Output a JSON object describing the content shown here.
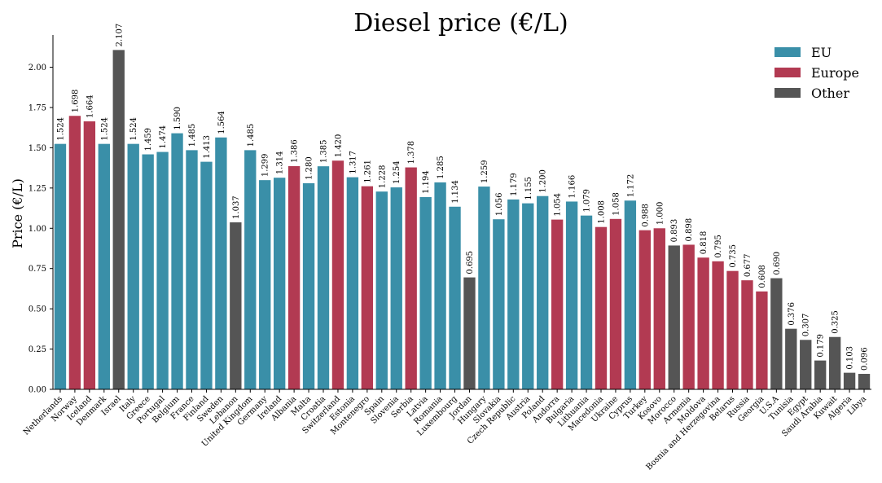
{
  "chart_data": {
    "type": "bar",
    "title": "Diesel price (€/L)",
    "xlabel": "",
    "ylabel": "Price (€/L)",
    "ylim": [
      0,
      2.2
    ],
    "yticks": [
      "0.00",
      "0.25",
      "0.50",
      "0.75",
      "1.00",
      "1.25",
      "1.50",
      "1.75",
      "2.00"
    ],
    "grid": false,
    "legend_position": "top-right",
    "groups": [
      {
        "name": "EU",
        "color": "#3a8fa8"
      },
      {
        "name": "Europe",
        "color": "#b23a52"
      },
      {
        "name": "Other",
        "color": "#555555"
      }
    ],
    "bars": [
      {
        "country": "Netherlands",
        "value": 1.524,
        "label": "1.524",
        "group": "EU"
      },
      {
        "country": "Norway",
        "value": 1.698,
        "label": "1.698",
        "group": "Europe"
      },
      {
        "country": "Iceland",
        "value": 1.664,
        "label": "1.664",
        "group": "Europe"
      },
      {
        "country": "Denmark",
        "value": 1.524,
        "label": "1.524",
        "group": "EU"
      },
      {
        "country": "Israel",
        "value": 2.107,
        "label": "2.107",
        "group": "Other"
      },
      {
        "country": "Italy",
        "value": 1.524,
        "label": "1.524",
        "group": "EU"
      },
      {
        "country": "Greece",
        "value": 1.459,
        "label": "1.459",
        "group": "EU"
      },
      {
        "country": "Portugal",
        "value": 1.474,
        "label": "1.474",
        "group": "EU"
      },
      {
        "country": "Belgium",
        "value": 1.59,
        "label": "1.590",
        "group": "EU"
      },
      {
        "country": "France",
        "value": 1.485,
        "label": "1.485",
        "group": "EU"
      },
      {
        "country": "Finland",
        "value": 1.413,
        "label": "1.413",
        "group": "EU"
      },
      {
        "country": "Sweden",
        "value": 1.564,
        "label": "1.564",
        "group": "EU"
      },
      {
        "country": "Lebanon",
        "value": 1.037,
        "label": "1.037",
        "group": "Other"
      },
      {
        "country": "United Kingdom",
        "value": 1.485,
        "label": "1.485",
        "group": "EU"
      },
      {
        "country": "Germany",
        "value": 1.299,
        "label": "1.299",
        "group": "EU"
      },
      {
        "country": "Ireland",
        "value": 1.314,
        "label": "1.314",
        "group": "EU"
      },
      {
        "country": "Albania",
        "value": 1.386,
        "label": "1.386",
        "group": "Europe"
      },
      {
        "country": "Malta",
        "value": 1.28,
        "label": "1.280",
        "group": "EU"
      },
      {
        "country": "Croatia",
        "value": 1.385,
        "label": "1.385",
        "group": "EU"
      },
      {
        "country": "Switzerland",
        "value": 1.42,
        "label": "1.420",
        "group": "Europe"
      },
      {
        "country": "Estonia",
        "value": 1.317,
        "label": "1.317",
        "group": "EU"
      },
      {
        "country": "Montenegro",
        "value": 1.261,
        "label": "1.261",
        "group": "Europe"
      },
      {
        "country": "Spain",
        "value": 1.228,
        "label": "1.228",
        "group": "EU"
      },
      {
        "country": "Slovenia",
        "value": 1.254,
        "label": "1.254",
        "group": "EU"
      },
      {
        "country": "Serbia",
        "value": 1.378,
        "label": "1.378",
        "group": "Europe"
      },
      {
        "country": "Latvia",
        "value": 1.194,
        "label": "1.194",
        "group": "EU"
      },
      {
        "country": "Romania",
        "value": 1.285,
        "label": "1.285",
        "group": "EU"
      },
      {
        "country": "Luxembourg",
        "value": 1.134,
        "label": "1.134",
        "group": "EU"
      },
      {
        "country": "Jordan",
        "value": 0.695,
        "label": "0.695",
        "group": "Other"
      },
      {
        "country": "Hungary",
        "value": 1.259,
        "label": "1.259",
        "group": "EU"
      },
      {
        "country": "Slovakia",
        "value": 1.056,
        "label": "1.056",
        "group": "EU"
      },
      {
        "country": "Czech Republic",
        "value": 1.179,
        "label": "1.179",
        "group": "EU"
      },
      {
        "country": "Austria",
        "value": 1.155,
        "label": "1.155",
        "group": "EU"
      },
      {
        "country": "Poland",
        "value": 1.2,
        "label": "1.200",
        "group": "EU"
      },
      {
        "country": "Andorra",
        "value": 1.054,
        "label": "1.054",
        "group": "Europe"
      },
      {
        "country": "Bulgaria",
        "value": 1.166,
        "label": "1.166",
        "group": "EU"
      },
      {
        "country": "Lithuania",
        "value": 1.079,
        "label": "1.079",
        "group": "EU"
      },
      {
        "country": "Macedonia",
        "value": 1.008,
        "label": "1.008",
        "group": "Europe"
      },
      {
        "country": "Ukraine",
        "value": 1.058,
        "label": "1.058",
        "group": "Europe"
      },
      {
        "country": "Cyprus",
        "value": 1.172,
        "label": "1.172",
        "group": "EU"
      },
      {
        "country": "Turkey",
        "value": 0.988,
        "label": "0.988",
        "group": "Europe"
      },
      {
        "country": "Kosovo",
        "value": 1.0,
        "label": "1.000",
        "group": "Europe"
      },
      {
        "country": "Morocco",
        "value": 0.893,
        "label": "0.893",
        "group": "Other"
      },
      {
        "country": "Armenia",
        "value": 0.898,
        "label": "0.898",
        "group": "Europe"
      },
      {
        "country": "Moldova",
        "value": 0.818,
        "label": "0.818",
        "group": "Europe"
      },
      {
        "country": "Bosnia and Herzegovina",
        "value": 0.795,
        "label": "0.795",
        "group": "Europe"
      },
      {
        "country": "Belarus",
        "value": 0.735,
        "label": "0.735",
        "group": "Europe"
      },
      {
        "country": "Russia",
        "value": 0.677,
        "label": "0.677",
        "group": "Europe"
      },
      {
        "country": "Georgia",
        "value": 0.608,
        "label": "0.608",
        "group": "Europe"
      },
      {
        "country": "U.S.A",
        "value": 0.69,
        "label": "0.690",
        "group": "Other"
      },
      {
        "country": "Tunisia",
        "value": 0.376,
        "label": "0.376",
        "group": "Other"
      },
      {
        "country": "Egypt",
        "value": 0.307,
        "label": "0.307",
        "group": "Other"
      },
      {
        "country": "Saudi Arabia",
        "value": 0.179,
        "label": "0.179",
        "group": "Other"
      },
      {
        "country": "Kuwait",
        "value": 0.325,
        "label": "0.325",
        "group": "Other"
      },
      {
        "country": "Algeria",
        "value": 0.103,
        "label": "0.103",
        "group": "Other"
      },
      {
        "country": "Libya",
        "value": 0.096,
        "label": "0.096",
        "group": "Other"
      }
    ]
  }
}
